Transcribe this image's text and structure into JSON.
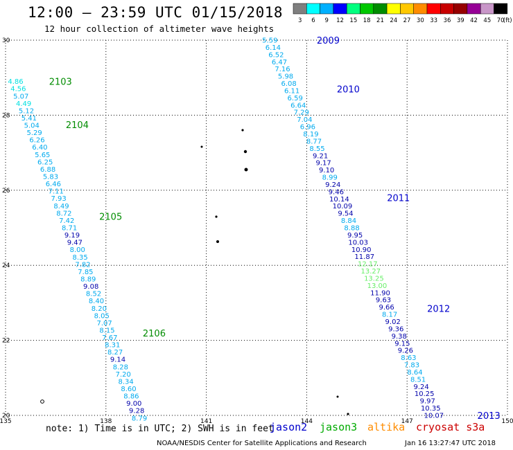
{
  "header": {
    "title": "12:00 – 23:59 UTC 01/15/2018",
    "subtitle": "12 hour collection of altimeter wave heights"
  },
  "legend": {
    "unit": "(ft)",
    "bins": [
      {
        "label": "3",
        "color": "#7f7f7f"
      },
      {
        "label": "6",
        "color": "#00ffff"
      },
      {
        "label": "9",
        "color": "#00b0ff"
      },
      {
        "label": "12",
        "color": "#0000ff"
      },
      {
        "label": "15",
        "color": "#00ff7f"
      },
      {
        "label": "18",
        "color": "#00c800"
      },
      {
        "label": "21",
        "color": "#008c00"
      },
      {
        "label": "24",
        "color": "#ffff00"
      },
      {
        "label": "27",
        "color": "#ffc800"
      },
      {
        "label": "30",
        "color": "#ff8c00"
      },
      {
        "label": "33",
        "color": "#ff0000"
      },
      {
        "label": "36",
        "color": "#c80000"
      },
      {
        "label": "39",
        "color": "#960000"
      },
      {
        "label": "42",
        "color": "#960096"
      },
      {
        "label": "45",
        "color": "#c896c8"
      },
      {
        "label": "70",
        "color": "#000000"
      }
    ]
  },
  "footer": {
    "note": "note: 1) Time is in UTC; 2) SWH is in feet",
    "credit": "NOAA/NESDIS Center for Satellite Applications and Research",
    "timestamp": "Jan 16 13:27:47 UTC 2018",
    "satellites": [
      {
        "name": "jason2",
        "color": "#0000cc"
      },
      {
        "name": "jason3",
        "color": "#00aa00"
      },
      {
        "name": "altika",
        "color": "#ff8c00"
      },
      {
        "name": "cryosat s3a",
        "color": "#cc0000"
      }
    ]
  },
  "chart_data": {
    "type": "scatter",
    "xlim": [
      135,
      150
    ],
    "ylim": [
      20,
      30
    ],
    "x_ticks": [
      "135",
      "138",
      "141",
      "144",
      "147",
      "150"
    ],
    "y_ticks": [
      "20",
      "22",
      "24",
      "26",
      "28",
      "30"
    ],
    "grid": true,
    "tracks": [
      {
        "satellite": "jason3",
        "color": "#008c00",
        "time_labels": [
          {
            "label": "2103",
            "x": 136.3,
            "y": 28.9
          },
          {
            "label": "2104",
            "x": 136.8,
            "y": 27.75
          },
          {
            "label": "2105",
            "x": 137.8,
            "y": 25.3
          },
          {
            "label": "2106",
            "x": 139.1,
            "y": 22.2
          }
        ],
        "start": [
          135.3,
          28.9
        ],
        "end": [
          139.0,
          19.93
        ],
        "values": [
          "4.86",
          "4.56",
          "5.07",
          "4.49",
          "5.12",
          "5.41",
          "5.04",
          "5.29",
          "6.26",
          "6.40",
          "5.65",
          "6.25",
          "6.88",
          "5.83",
          "6.46",
          "7.11",
          "7.93",
          "8.49",
          "8.72",
          "7.42",
          "8.71",
          "9.19",
          "9.47",
          "8.00",
          "8.35",
          "7.82",
          "7.85",
          "8.89",
          "9.08",
          "8.52",
          "8.40",
          "8.20",
          "8.05",
          "7.07",
          "8.15",
          "7.67",
          "8.31",
          "8.27",
          "9.14",
          "8.28",
          "7.20",
          "8.34",
          "8.60",
          "8.86",
          "9.00",
          "9.28",
          "8.79"
        ]
      },
      {
        "satellite": "jason2",
        "color": "#0000cc",
        "time_labels": [
          {
            "label": "2009",
            "x": 144.3,
            "y": 30.0
          },
          {
            "label": "2010",
            "x": 144.9,
            "y": 28.7
          },
          {
            "label": "2011",
            "x": 146.4,
            "y": 25.8
          },
          {
            "label": "2012",
            "x": 147.6,
            "y": 22.85
          },
          {
            "label": "2013",
            "x": 149.1,
            "y": 20.0
          }
        ],
        "start": [
          142.9,
          30.0
        ],
        "end": [
          147.8,
          20.0
        ],
        "values": [
          "5.59",
          "6.14",
          "6.52",
          "6.47",
          "7.16",
          "5.98",
          "6.08",
          "6.11",
          "6.59",
          "6.64",
          "7.29",
          "7.04",
          "6.96",
          "8.19",
          "8.77",
          "8.55",
          "9.21",
          "9.17",
          "9.10",
          "8.99",
          "9.24",
          "9.46",
          "10.14",
          "10.09",
          "9.54",
          "8.84",
          "8.88",
          "9.95",
          "10.03",
          "10.90",
          "11.87",
          "12.17",
          "13.27",
          "13.25",
          "13.00",
          "11.90",
          "9.63",
          "9.66",
          "8.17",
          "9.02",
          "9.36",
          "9.38",
          "9.15",
          "9.26",
          "8.63",
          "7.83",
          "8.64",
          "8.51",
          "9.24",
          "10.25",
          "9.97",
          "10.35",
          "10.07"
        ]
      }
    ]
  }
}
